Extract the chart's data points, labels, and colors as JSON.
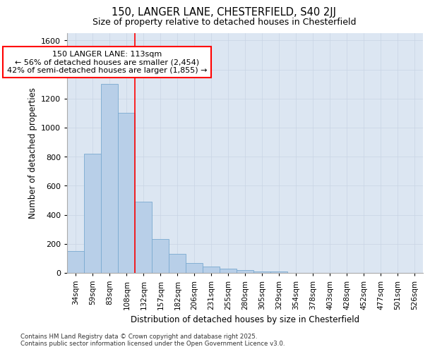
{
  "title_line1": "150, LANGER LANE, CHESTERFIELD, S40 2JJ",
  "title_line2": "Size of property relative to detached houses in Chesterfield",
  "xlabel": "Distribution of detached houses by size in Chesterfield",
  "ylabel": "Number of detached properties",
  "footer_line1": "Contains HM Land Registry data © Crown copyright and database right 2025.",
  "footer_line2": "Contains public sector information licensed under the Open Government Licence v3.0.",
  "annotation_line1": "150 LANGER LANE: 113sqm",
  "annotation_line2": "← 56% of detached houses are smaller (2,454)",
  "annotation_line3": "42% of semi-detached houses are larger (1,855) →",
  "bar_color": "#b8cfe8",
  "bar_edge_color": "#7aaad0",
  "vline_color": "red",
  "vline_position": 3.5,
  "grid_color": "#c8d4e4",
  "background_color": "#dce6f2",
  "categories": [
    "34sqm",
    "59sqm",
    "83sqm",
    "108sqm",
    "132sqm",
    "157sqm",
    "182sqm",
    "206sqm",
    "231sqm",
    "255sqm",
    "280sqm",
    "305sqm",
    "329sqm",
    "354sqm",
    "378sqm",
    "403sqm",
    "428sqm",
    "452sqm",
    "477sqm",
    "501sqm",
    "526sqm"
  ],
  "values": [
    150,
    820,
    1300,
    1100,
    490,
    235,
    130,
    70,
    45,
    30,
    20,
    10,
    10,
    2,
    2,
    2,
    2,
    2,
    2,
    2,
    2
  ],
  "ylim": [
    0,
    1650
  ],
  "yticks": [
    0,
    200,
    400,
    600,
    800,
    1000,
    1200,
    1400,
    1600
  ]
}
